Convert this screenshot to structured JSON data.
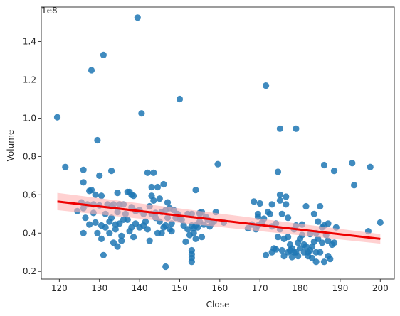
{
  "chart_data": {
    "type": "scatter",
    "xlabel": "Close",
    "ylabel": "Volume",
    "y_offset_label": "1e8",
    "xlim": [
      115.5,
      203.5
    ],
    "ylim": [
      0.16,
      1.58
    ],
    "x_ticks": [
      {
        "value": 120,
        "label": "120"
      },
      {
        "value": 130,
        "label": "130"
      },
      {
        "value": 140,
        "label": "140"
      },
      {
        "value": 150,
        "label": "150"
      },
      {
        "value": 160,
        "label": "160"
      },
      {
        "value": 170,
        "label": "170"
      },
      {
        "value": 180,
        "label": "180"
      },
      {
        "value": 190,
        "label": "190"
      },
      {
        "value": 200,
        "label": "200"
      }
    ],
    "y_ticks": [
      {
        "value": 0.2,
        "label": "0.2"
      },
      {
        "value": 0.4,
        "label": "0.4"
      },
      {
        "value": 0.6,
        "label": "0.6"
      },
      {
        "value": 0.8,
        "label": "0.8"
      },
      {
        "value": 1.0,
        "label": "1.0"
      },
      {
        "value": 1.2,
        "label": "1.2"
      },
      {
        "value": 1.4,
        "label": "1.4"
      }
    ],
    "grid": false,
    "colors": {
      "points": "#1f77b4",
      "regression_line": "#ee0000",
      "confidence_band": "#ffb3b3"
    },
    "regression": {
      "x": [
        119.5,
        200
      ],
      "y": [
        0.565,
        0.37
      ],
      "band_upper": [
        0.61,
        0.395
      ],
      "band_lower": [
        0.52,
        0.345
      ]
    },
    "points": [
      [
        119.5,
        1.005
      ],
      [
        121.5,
        0.745
      ],
      [
        124.5,
        0.515
      ],
      [
        125.5,
        0.56
      ],
      [
        126,
        0.73
      ],
      [
        126,
        0.665
      ],
      [
        126,
        0.53
      ],
      [
        126.5,
        0.48
      ],
      [
        126,
        0.4
      ],
      [
        127,
        0.55
      ],
      [
        127.5,
        0.62
      ],
      [
        128,
        0.625
      ],
      [
        127.5,
        0.445
      ],
      [
        128,
        1.25
      ],
      [
        128.5,
        0.55
      ],
      [
        128.5,
        0.505
      ],
      [
        129,
        0.6
      ],
      [
        129,
        0.455
      ],
      [
        129.5,
        0.885
      ],
      [
        129.5,
        0.4
      ],
      [
        130,
        0.7
      ],
      [
        130,
        0.545
      ],
      [
        130.5,
        0.595
      ],
      [
        130.5,
        0.44
      ],
      [
        130.5,
        0.37
      ],
      [
        131,
        1.33
      ],
      [
        131,
        0.285
      ],
      [
        131.5,
        0.43
      ],
      [
        131.5,
        0.5
      ],
      [
        132,
        0.55
      ],
      [
        132.5,
        0.4
      ],
      [
        132.5,
        0.46
      ],
      [
        133,
        0.54
      ],
      [
        133,
        0.725
      ],
      [
        133,
        0.48
      ],
      [
        133.5,
        0.55
      ],
      [
        133.5,
        0.35
      ],
      [
        134,
        0.445
      ],
      [
        134,
        0.42
      ],
      [
        134.5,
        0.33
      ],
      [
        134.5,
        0.61
      ],
      [
        134.5,
        0.51
      ],
      [
        135,
        0.55
      ],
      [
        135,
        0.45
      ],
      [
        135.5,
        0.385
      ],
      [
        135.5,
        0.36
      ],
      [
        136,
        0.55
      ],
      [
        136,
        0.47
      ],
      [
        136.5,
        0.5
      ],
      [
        137,
        0.615
      ],
      [
        137,
        0.47
      ],
      [
        137.5,
        0.41
      ],
      [
        137.5,
        0.615
      ],
      [
        138,
        0.535
      ],
      [
        138,
        0.43
      ],
      [
        138,
        0.6
      ],
      [
        138.5,
        0.595
      ],
      [
        138.5,
        0.38
      ],
      [
        139,
        0.45
      ],
      [
        139,
        0.515
      ],
      [
        139.5,
        1.525
      ],
      [
        140,
        0.43
      ],
      [
        140,
        0.52
      ],
      [
        140.5,
        1.025
      ],
      [
        141,
        0.5
      ],
      [
        141,
        0.44
      ],
      [
        141.5,
        0.46
      ],
      [
        142,
        0.42
      ],
      [
        142,
        0.715
      ],
      [
        142.5,
        0.36
      ],
      [
        142.5,
        0.54
      ],
      [
        143,
        0.595
      ],
      [
        143,
        0.5
      ],
      [
        143,
        0.64
      ],
      [
        143.5,
        0.57
      ],
      [
        143.5,
        0.715
      ],
      [
        144,
        0.505
      ],
      [
        144,
        0.48
      ],
      [
        144.5,
        0.64
      ],
      [
        144.5,
        0.4
      ],
      [
        145,
        0.58
      ],
      [
        145,
        0.46
      ],
      [
        145.5,
        0.51
      ],
      [
        145.5,
        0.4
      ],
      [
        146,
        0.655
      ],
      [
        146,
        0.43
      ],
      [
        146.5,
        0.52
      ],
      [
        146.5,
        0.44
      ],
      [
        146.5,
        0.225
      ],
      [
        147,
        0.48
      ],
      [
        147,
        0.56
      ],
      [
        147.5,
        0.42
      ],
      [
        147.5,
        0.53
      ],
      [
        148,
        0.41
      ],
      [
        148,
        0.45
      ],
      [
        148.5,
        0.52
      ],
      [
        149,
        0.48
      ],
      [
        149.5,
        0.5
      ],
      [
        150,
        1.1
      ],
      [
        150,
        0.475
      ],
      [
        150.5,
        0.47
      ],
      [
        151,
        0.44
      ],
      [
        151.5,
        0.355
      ],
      [
        152,
        0.5
      ],
      [
        152,
        0.42
      ],
      [
        152.5,
        0.39
      ],
      [
        153,
        0.44
      ],
      [
        153,
        0.5
      ],
      [
        153,
        0.31
      ],
      [
        153,
        0.27
      ],
      [
        153,
        0.29
      ],
      [
        153,
        0.25
      ],
      [
        153.5,
        0.4
      ],
      [
        153.5,
        0.425
      ],
      [
        154,
        0.625
      ],
      [
        154,
        0.44
      ],
      [
        154,
        0.37
      ],
      [
        154.5,
        0.43
      ],
      [
        155,
        0.46
      ],
      [
        155,
        0.505
      ],
      [
        155,
        0.5
      ],
      [
        155.5,
        0.51
      ],
      [
        155.5,
        0.38
      ],
      [
        156,
        0.445
      ],
      [
        156.5,
        0.485
      ],
      [
        157,
        0.47
      ],
      [
        157.5,
        0.435
      ],
      [
        158,
        0.45
      ],
      [
        158.5,
        0.46
      ],
      [
        159,
        0.51
      ],
      [
        159.5,
        0.76
      ],
      [
        161,
        0.455
      ],
      [
        167,
        0.425
      ],
      [
        168,
        0.445
      ],
      [
        168.5,
        0.565
      ],
      [
        169,
        0.42
      ],
      [
        169.5,
        0.44
      ],
      [
        169.5,
        0.485
      ],
      [
        169.5,
        0.5
      ],
      [
        170,
        0.555
      ],
      [
        170.5,
        0.455
      ],
      [
        171,
        0.475
      ],
      [
        171.5,
        1.17
      ],
      [
        171.5,
        0.285
      ],
      [
        172,
        0.51
      ],
      [
        172.5,
        0.5
      ],
      [
        173,
        0.3
      ],
      [
        173,
        0.55
      ],
      [
        173,
        0.435
      ],
      [
        173.5,
        0.32
      ],
      [
        174,
        0.315
      ],
      [
        174,
        0.45
      ],
      [
        174.5,
        0.72
      ],
      [
        174.5,
        0.38
      ],
      [
        175,
        0.945
      ],
      [
        175,
        0.6
      ],
      [
        175,
        0.57
      ],
      [
        175,
        0.42
      ],
      [
        175.5,
        0.5
      ],
      [
        175.5,
        0.31
      ],
      [
        176,
        0.37
      ],
      [
        176,
        0.28
      ],
      [
        176.5,
        0.59
      ],
      [
        176.5,
        0.55
      ],
      [
        177,
        0.3
      ],
      [
        177,
        0.38
      ],
      [
        177,
        0.48
      ],
      [
        177.5,
        0.34
      ],
      [
        177.5,
        0.31
      ],
      [
        178,
        0.32
      ],
      [
        178,
        0.275
      ],
      [
        178.5,
        0.42
      ],
      [
        178.5,
        0.3
      ],
      [
        179,
        0.945
      ],
      [
        179,
        0.44
      ],
      [
        179,
        0.3
      ],
      [
        179.5,
        0.28
      ],
      [
        179.5,
        0.35
      ],
      [
        180,
        0.37
      ],
      [
        180,
        0.32
      ],
      [
        180.5,
        0.445
      ],
      [
        180.5,
        0.39
      ],
      [
        181,
        0.34
      ],
      [
        181,
        0.3
      ],
      [
        181.5,
        0.54
      ],
      [
        181.5,
        0.33
      ],
      [
        182,
        0.28
      ],
      [
        182,
        0.3
      ],
      [
        182.5,
        0.31
      ],
      [
        182.5,
        0.395
      ],
      [
        183,
        0.33
      ],
      [
        183,
        0.27
      ],
      [
        183.5,
        0.5
      ],
      [
        183.5,
        0.355
      ],
      [
        184,
        0.25
      ],
      [
        184,
        0.4
      ],
      [
        184,
        0.3
      ],
      [
        184.5,
        0.46
      ],
      [
        184.5,
        0.37
      ],
      [
        185,
        0.54
      ],
      [
        185,
        0.3
      ],
      [
        185.5,
        0.43
      ],
      [
        185.5,
        0.35
      ],
      [
        186,
        0.755
      ],
      [
        186,
        0.44
      ],
      [
        186,
        0.25
      ],
      [
        186.5,
        0.39
      ],
      [
        187,
        0.36
      ],
      [
        187,
        0.45
      ],
      [
        187,
        0.28
      ],
      [
        187.5,
        0.265
      ],
      [
        188,
        0.34
      ],
      [
        188.5,
        0.35
      ],
      [
        188.5,
        0.725
      ],
      [
        189,
        0.43
      ],
      [
        193,
        0.765
      ],
      [
        193.5,
        0.65
      ],
      [
        197,
        0.41
      ],
      [
        197.5,
        0.745
      ],
      [
        200,
        0.455
      ]
    ]
  }
}
